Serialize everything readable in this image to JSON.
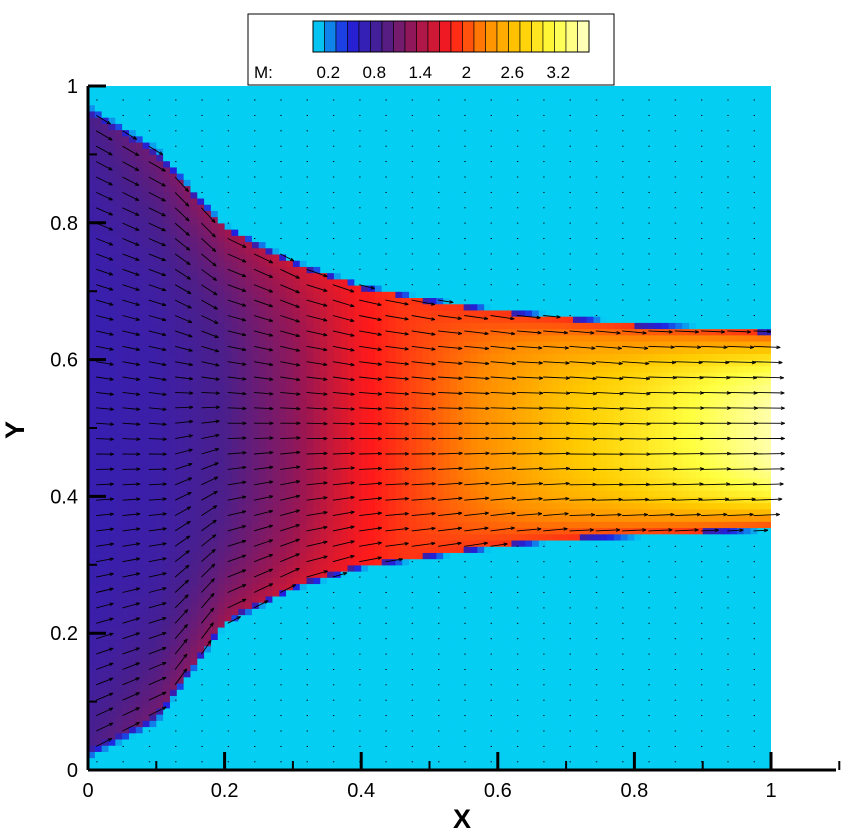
{
  "chart_data": {
    "type": "heatmap",
    "title": "",
    "xlabel": "X",
    "ylabel": "Y",
    "xlim": [
      0,
      1
    ],
    "ylim": [
      0,
      1
    ],
    "xticks": [
      "0",
      "0.2",
      "0.4",
      "0.6",
      "0.8",
      "1"
    ],
    "yticks": [
      "0",
      "0.2",
      "0.4",
      "0.6",
      "0.8",
      "1"
    ],
    "grid": false,
    "legend": {
      "placement": "top-center",
      "label": "M:",
      "ticks": [
        "0.2",
        "0.8",
        "1.4",
        "2",
        "2.6",
        "3.2"
      ],
      "range": [
        0,
        3.6
      ]
    },
    "colormap": [
      "#00e5f5",
      "#2020e0",
      "#4a1f8c",
      "#9e1650",
      "#ff1a1a",
      "#ff8a00",
      "#ffcc00",
      "#ffff40",
      "#ffffcc"
    ],
    "field_variable": "M",
    "overlay": "velocity vectors",
    "jet_profile": {
      "x": [
        0,
        0.1,
        0.2,
        0.3,
        0.4,
        0.5,
        0.6,
        0.7,
        0.8,
        0.9,
        1.0
      ],
      "upper_edge_y": [
        0.96,
        0.9,
        0.79,
        0.74,
        0.705,
        0.685,
        0.67,
        0.66,
        0.65,
        0.645,
        0.64
      ],
      "lower_edge_y": [
        0.03,
        0.08,
        0.22,
        0.27,
        0.3,
        0.315,
        0.33,
        0.34,
        0.345,
        0.35,
        0.355
      ],
      "centerline_mach": [
        0.7,
        0.75,
        0.9,
        1.25,
        1.75,
        2.05,
        2.35,
        2.65,
        2.9,
        3.2,
        3.5
      ]
    }
  }
}
